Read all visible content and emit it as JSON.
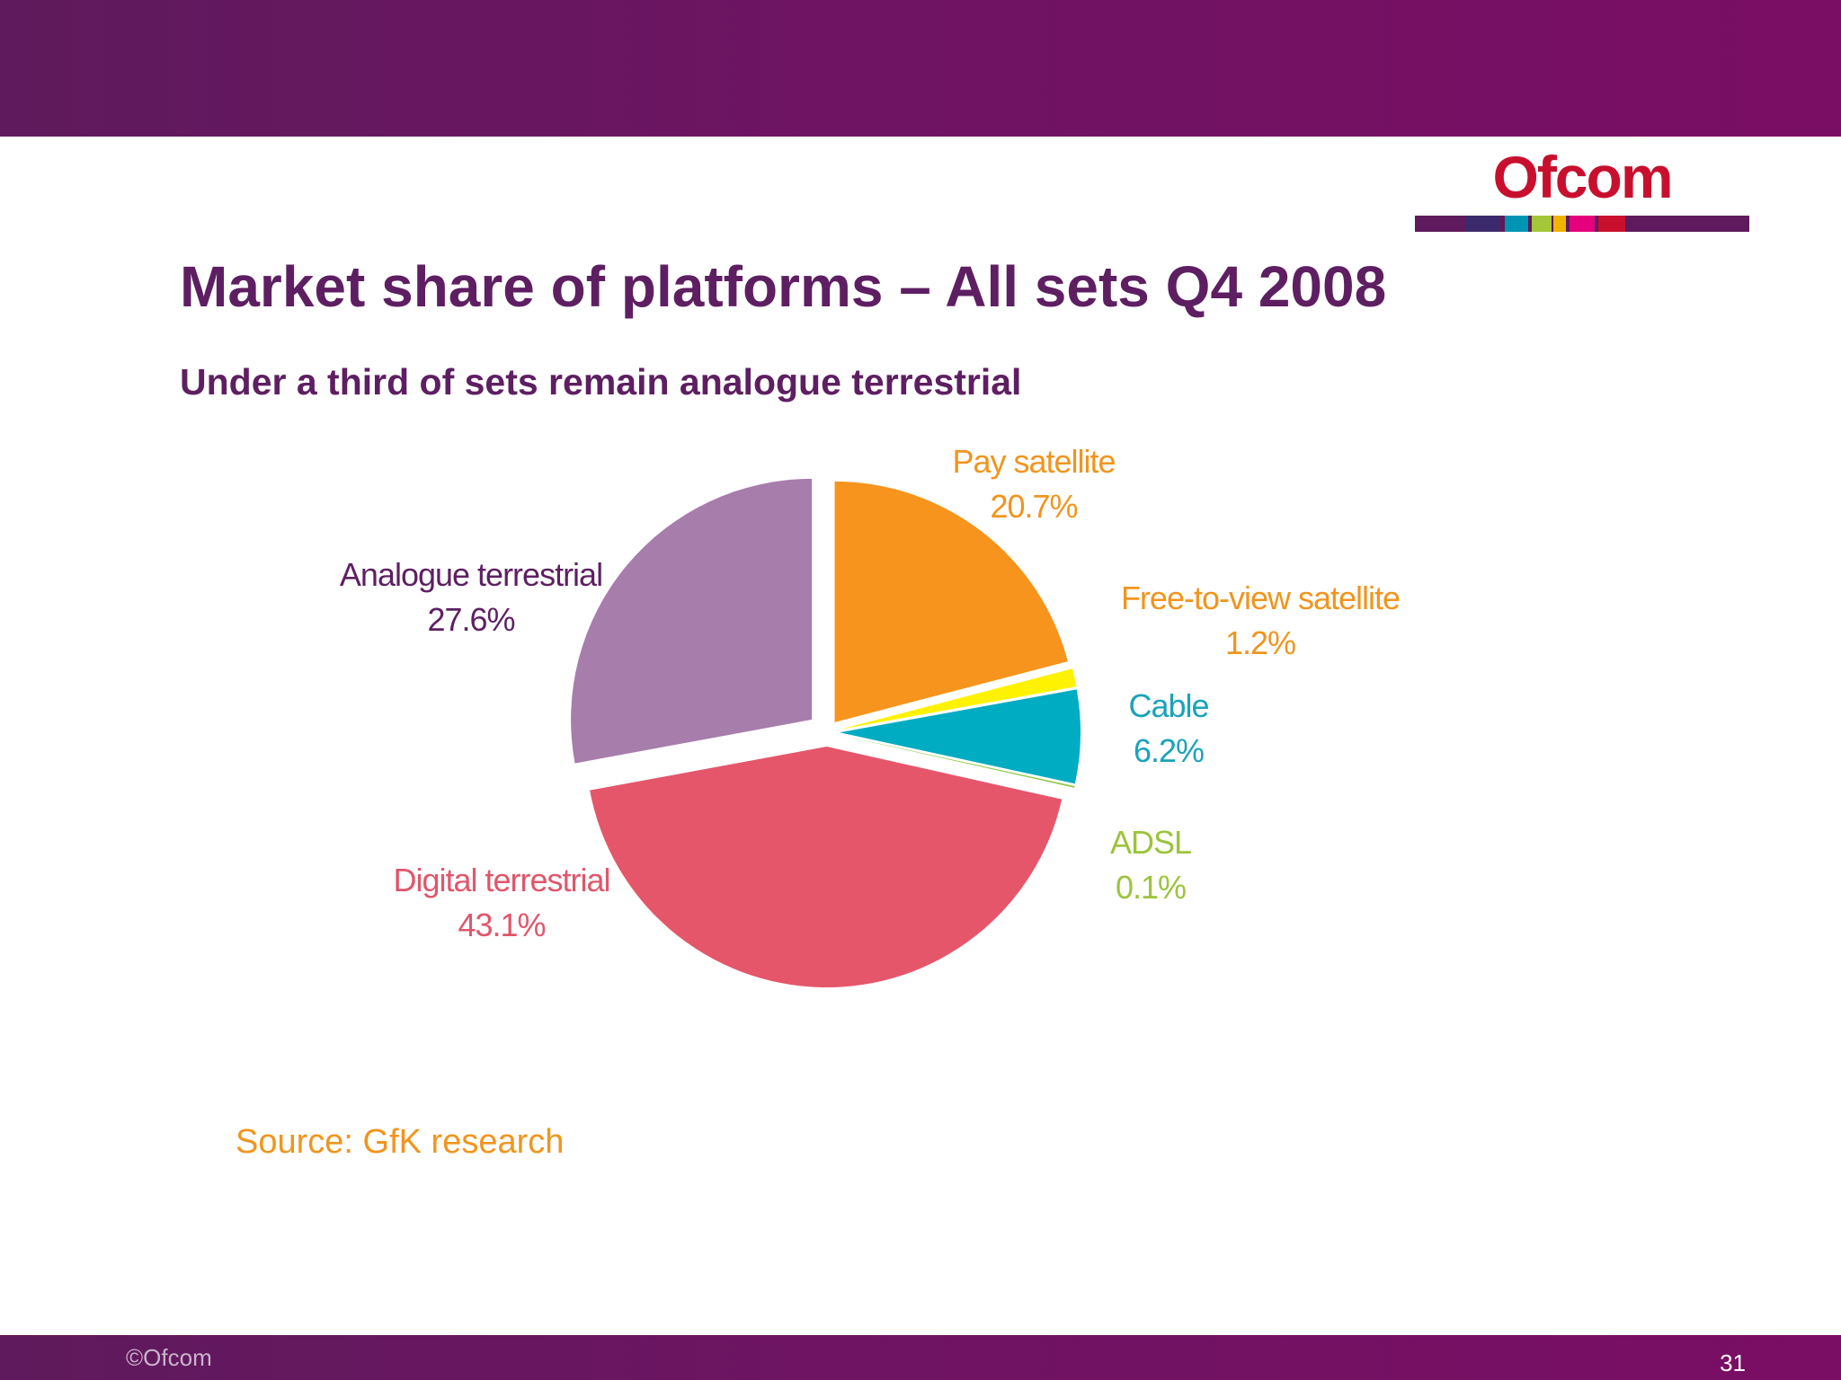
{
  "slide": {
    "title": "Market share of platforms – All sets Q4 2008",
    "subtitle": "Under a third of sets remain analogue terrestrial",
    "source": "Source: GfK research",
    "copyright": "©Ofcom",
    "page_number": "31",
    "logo_text": "Ofcom",
    "brand_color": "#6e1462"
  },
  "chart_data": {
    "type": "pie",
    "slices": [
      {
        "label": "Pay satellite",
        "value": 20.7,
        "value_label": "20.7%",
        "color": "#f7941d"
      },
      {
        "label": "Free-to-view satellite",
        "value": 1.2,
        "value_label": "1.2%",
        "color": "#fff200"
      },
      {
        "label": "Cable",
        "value": 6.2,
        "value_label": "6.2%",
        "color": "#00acc1"
      },
      {
        "label": "ADSL",
        "value": 0.1,
        "value_label": "0.1%",
        "color": "#8dc63f"
      },
      {
        "label": "Digital terrestrial",
        "value": 43.1,
        "value_label": "43.1%",
        "color": "#e5566b"
      },
      {
        "label": "Analogue terrestrial",
        "value": 27.6,
        "value_label": "27.6%",
        "color": "#a77dab"
      }
    ],
    "label_colors": [
      "#f0951e",
      "#f0951e",
      "#1aa3b8",
      "#9cc43c",
      "#e0566b",
      "#5e1f62"
    ]
  }
}
